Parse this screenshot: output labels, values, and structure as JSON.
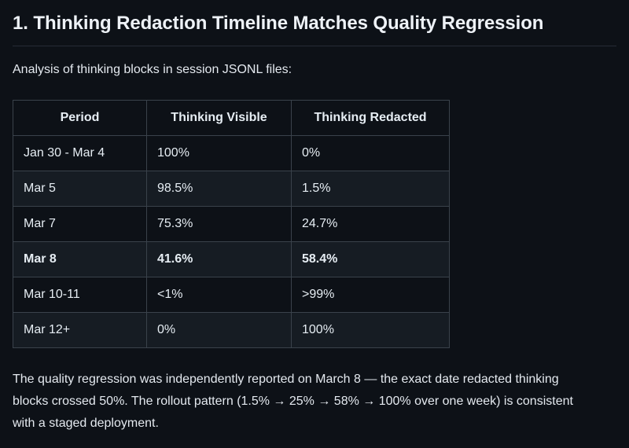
{
  "page": {
    "title": "1. Thinking Redaction Timeline Matches Quality Regression",
    "intro": "Analysis of thinking blocks in session JSONL files:",
    "footer": "The quality regression was independently reported on March 8 — the exact date redacted thinking blocks crossed 50%. The rollout pattern (1.5% → 25% → 58% → 100% over one week) is consistent with a staged deployment."
  },
  "table": {
    "columns": [
      "Period",
      "Thinking Visible",
      "Thinking Redacted"
    ],
    "rows": [
      {
        "period": "Jan 30 - Mar 4",
        "visible": "100%",
        "redacted": "0%",
        "bold": false
      },
      {
        "period": "Mar 5",
        "visible": "98.5%",
        "redacted": "1.5%",
        "bold": false
      },
      {
        "period": "Mar 7",
        "visible": "75.3%",
        "redacted": "24.7%",
        "bold": false
      },
      {
        "period": "Mar 8",
        "visible": "41.6%",
        "redacted": "58.4%",
        "bold": true
      },
      {
        "period": "Mar 10-11",
        "visible": "<1%",
        "redacted": ">99%",
        "bold": false
      },
      {
        "period": "Mar 12+",
        "visible": "0%",
        "redacted": "100%",
        "bold": false
      }
    ]
  },
  "colors": {
    "background": "#0d1117",
    "row_alt_background": "#161c23",
    "table_border": "#3a424b",
    "heading_divider": "#262c36",
    "text": "#e6edf3"
  }
}
